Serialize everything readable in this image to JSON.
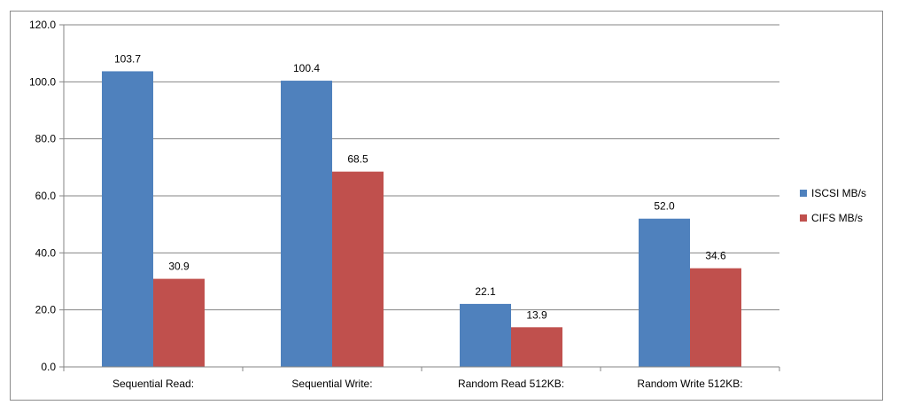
{
  "chart_data": {
    "type": "bar",
    "categories": [
      "Sequential Read:",
      "Sequential Write:",
      "Random Read 512KB:",
      "Random Write 512KB:"
    ],
    "series": [
      {
        "name": "ISCSI MB/s",
        "color": "#4f81bd",
        "values": [
          103.7,
          100.4,
          22.1,
          52.0
        ]
      },
      {
        "name": "CIFS MB/s",
        "color": "#c0504d",
        "values": [
          30.9,
          68.5,
          13.9,
          34.6
        ]
      }
    ],
    "ylim": [
      0,
      120
    ],
    "yticks": [
      "0.0",
      "20.0",
      "40.0",
      "60.0",
      "80.0",
      "100.0",
      "120.0"
    ],
    "grid": true,
    "legend": "right"
  }
}
